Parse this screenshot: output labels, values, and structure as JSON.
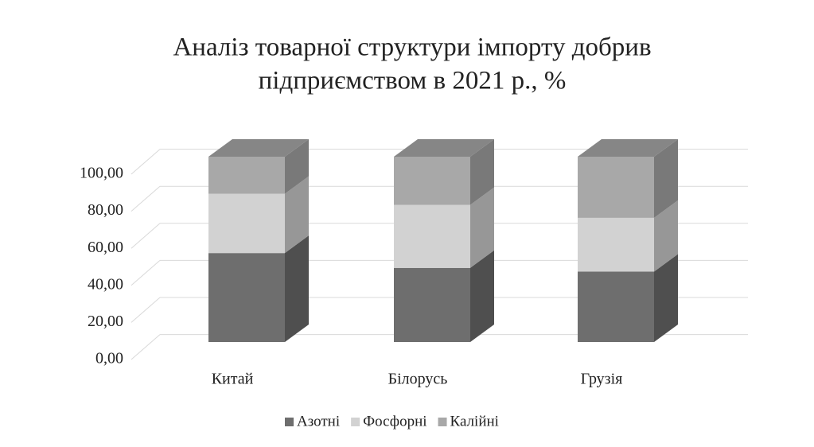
{
  "chart_data": {
    "type": "bar3d_stacked",
    "title": [
      "Аналіз товарної структури імпорту добрив",
      "підприємством в 2021 р., %"
    ],
    "categories": [
      "Китай",
      "Білорусь",
      "Грузія"
    ],
    "series": [
      {
        "name": "Азотні",
        "color": "#6e6e6e",
        "values": [
          48,
          40,
          38
        ]
      },
      {
        "name": "Фосфорні",
        "color": "#d2d2d2",
        "values": [
          32,
          34,
          29
        ]
      },
      {
        "name": "Калійні",
        "color": "#a8a8a8",
        "values": [
          20,
          26,
          33
        ]
      }
    ],
    "ylim": [
      0,
      100
    ],
    "yticks": [
      {
        "value": 0,
        "label": "0,00"
      },
      {
        "value": 20,
        "label": "20,00"
      },
      {
        "value": 40,
        "label": "40,00"
      },
      {
        "value": 60,
        "label": "60,00"
      },
      {
        "value": 80,
        "label": "80,00"
      },
      {
        "value": 100,
        "label": "100,00"
      }
    ],
    "grid": true,
    "legend": "bottom"
  }
}
